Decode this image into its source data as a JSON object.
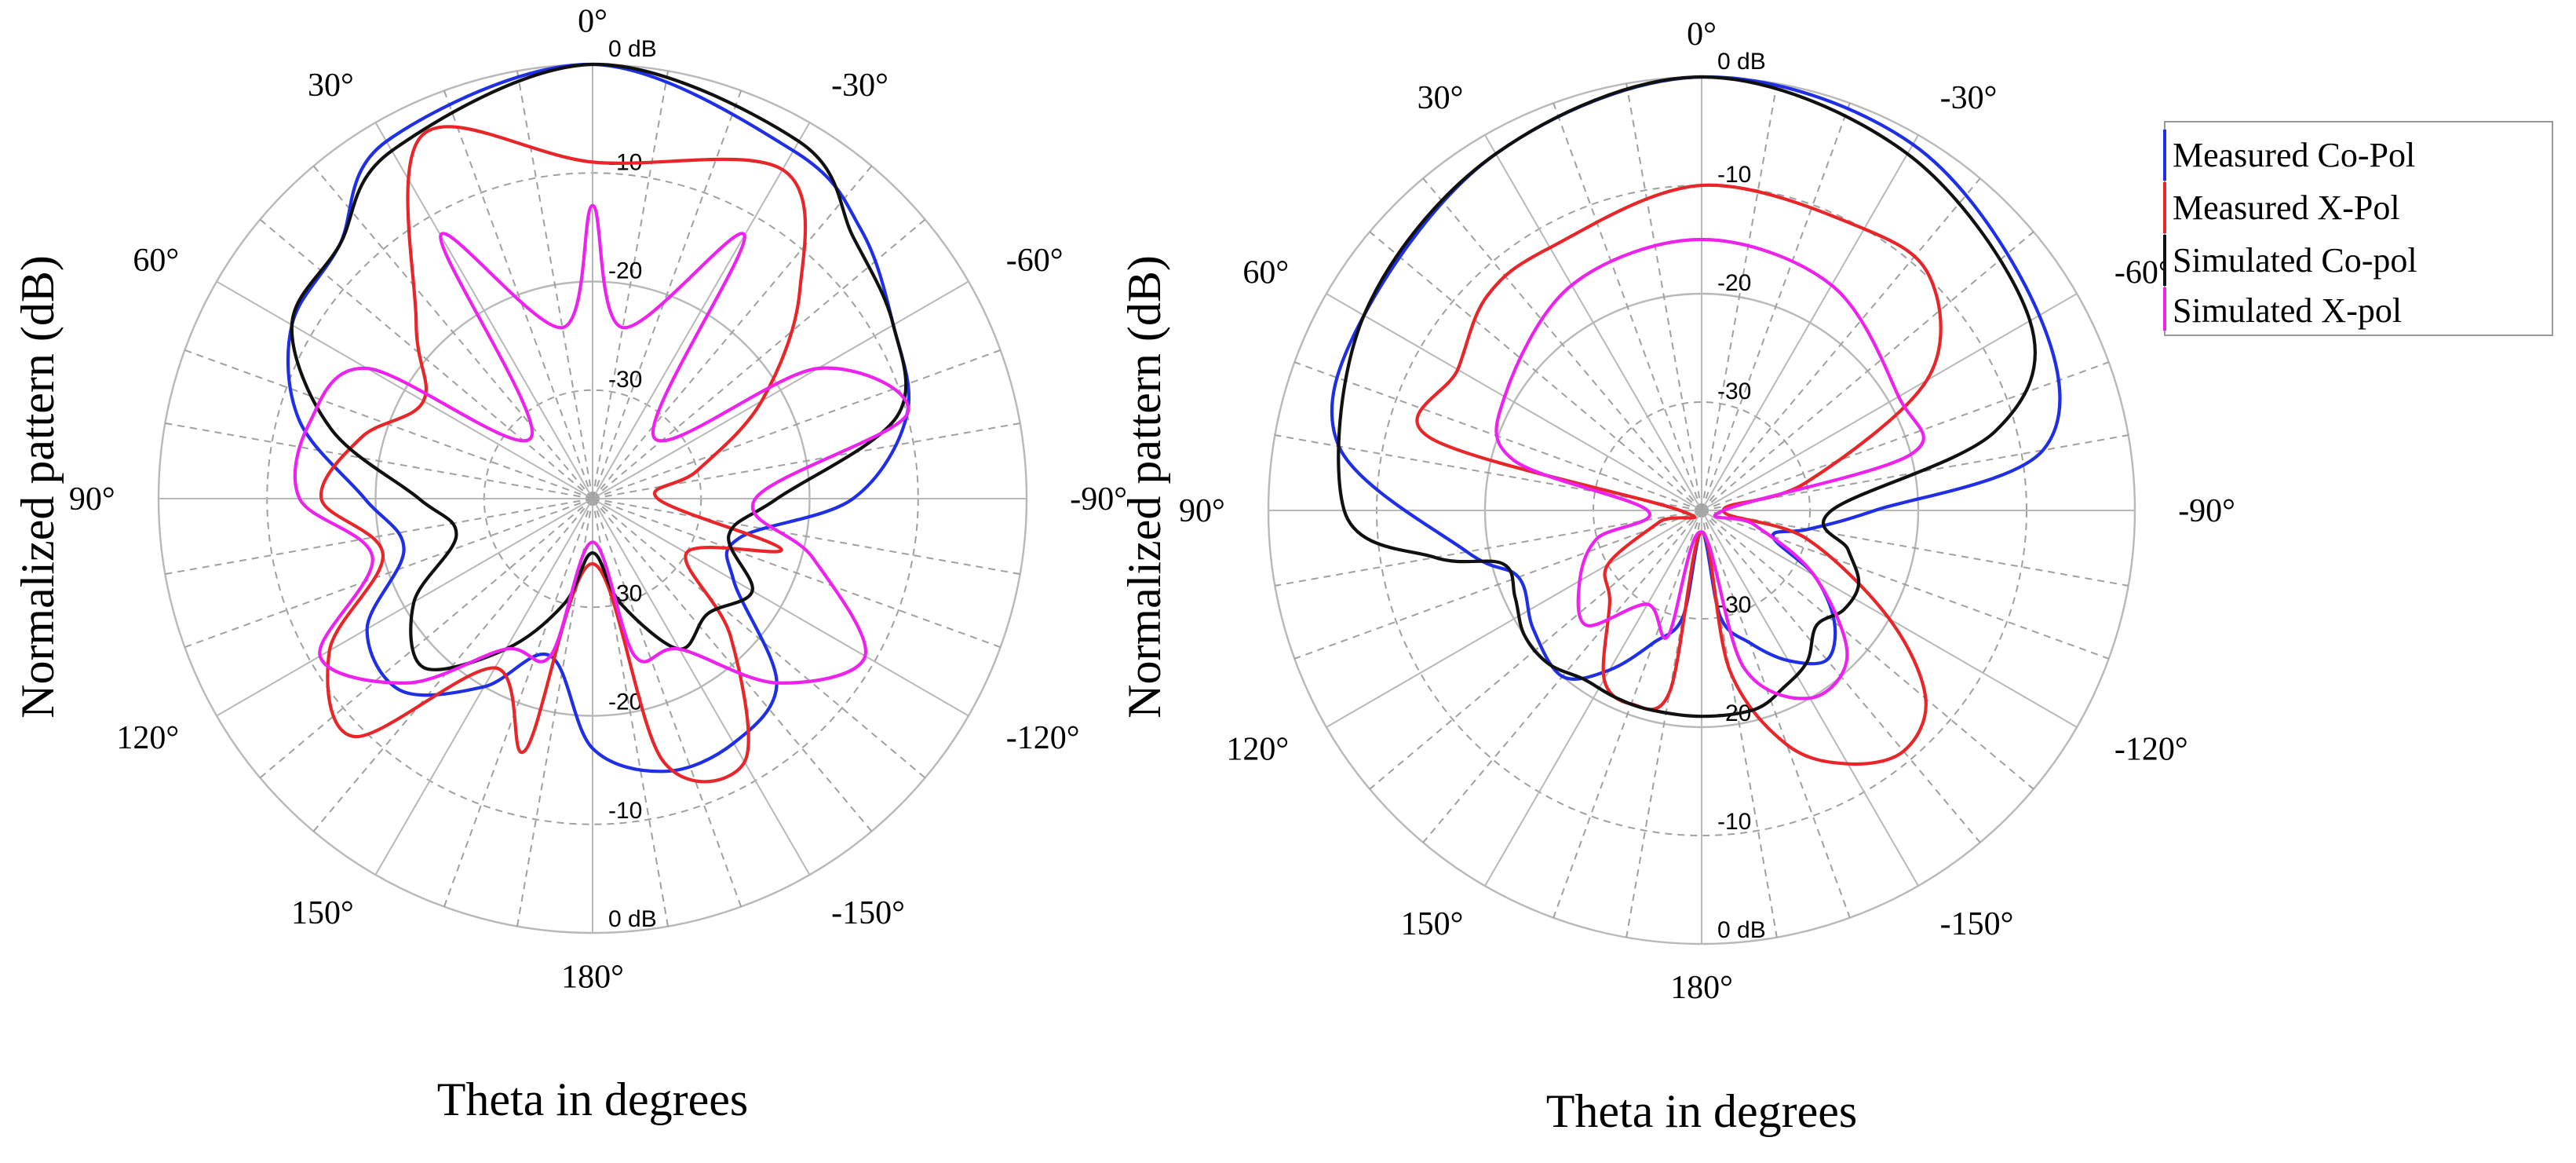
{
  "colors": {
    "measured_co": "#1f2fe6",
    "measured_x": "#e8262a",
    "simulated_co": "#111111",
    "simulated_x": "#ee22ee"
  },
  "legend": [
    {
      "label": "Measured Co-Pol",
      "color": "#1f2fe6"
    },
    {
      "label": "Measured X-Pol",
      "color": "#e8262a"
    },
    {
      "label": "Simulated Co-pol",
      "color": "#111111"
    },
    {
      "label": "Simulated X-pol",
      "color": "#ee22ee"
    }
  ],
  "chart_data": [
    {
      "type": "polar-line",
      "xlabel": "Theta in degrees",
      "ylabel": "Normalized pattern (dB)",
      "rlim": [
        -40,
        0
      ],
      "radial_ticks": [
        "0 dB",
        "-10",
        "-20",
        "-30"
      ],
      "lower_radial_ticks": [
        "-30",
        "-20",
        "-10",
        "0 dB"
      ],
      "angle_ticks": [
        "0°",
        "30°",
        "60°",
        "90°",
        "120°",
        "150°",
        "180°",
        "-30°",
        "-60°",
        "-90°",
        "-120°",
        "-150°"
      ],
      "series": [
        {
          "name": "Measured Co-Pol",
          "theta": [
            0,
            30,
            45,
            60,
            75,
            90,
            105,
            120,
            135,
            150,
            165,
            180,
            195,
            210,
            225,
            240,
            255,
            270,
            285,
            300,
            315,
            330
          ],
          "values": [
            0,
            -2,
            -7,
            -8,
            -12,
            -19,
            -22,
            -16,
            -15,
            -20,
            -25,
            -17,
            -14,
            -14,
            -16,
            -25,
            -26,
            -16,
            -10,
            -8,
            -5,
            -3
          ]
        },
        {
          "name": "Measured X-Pol",
          "theta": [
            0,
            25,
            45,
            60,
            75,
            90,
            105,
            120,
            135,
            150,
            165,
            180,
            195,
            210,
            225,
            240,
            255,
            270,
            285,
            300,
            315,
            330
          ],
          "values": [
            -9,
            -3,
            -17,
            -22,
            -18,
            -15,
            -20,
            -12,
            -9,
            -22,
            -16,
            -34,
            -15,
            -12,
            -22,
            -30,
            -22,
            -34,
            -30,
            -22,
            -13,
            -5
          ]
        },
        {
          "name": "Simulated Co-pol",
          "theta": [
            0,
            30,
            45,
            60,
            75,
            90,
            105,
            120,
            135,
            150,
            165,
            180,
            195,
            210,
            225,
            240,
            255,
            270,
            285,
            300,
            315,
            330
          ],
          "values": [
            0,
            -3,
            -7,
            -8,
            -15,
            -24,
            -27,
            -21,
            -18,
            -24,
            -30,
            -35,
            -30,
            -24,
            -25,
            -23,
            -27,
            -23,
            -11,
            -8,
            -6,
            -2
          ]
        },
        {
          "name": "Simulated X-pol",
          "theta": [
            0,
            10,
            30,
            45,
            60,
            75,
            90,
            105,
            120,
            135,
            150,
            165,
            180,
            195,
            210,
            225,
            240,
            255,
            270,
            285,
            300,
            315,
            330,
            350
          ],
          "values": [
            -13,
            -24,
            -12,
            -32,
            -16,
            -13,
            -13,
            -19,
            -11,
            -16,
            -24,
            -25,
            -36,
            -25,
            -24,
            -16,
            -11,
            -19,
            -25,
            -10,
            -16,
            -32,
            -12,
            -24
          ]
        }
      ]
    },
    {
      "type": "polar-line",
      "xlabel": "Theta in degrees",
      "ylabel": "Normalized pattern (dB)",
      "rlim": [
        -40,
        0
      ],
      "radial_ticks": [
        "0 dB",
        "-10",
        "-20",
        "-30"
      ],
      "lower_radial_ticks": [
        "-30",
        "-20",
        "-10",
        "0 dB"
      ],
      "angle_ticks": [
        "0°",
        "30°",
        "60°",
        "90°",
        "120°",
        "150°",
        "180°",
        "-30°",
        "-60°",
        "-90°",
        "-120°",
        "-150°"
      ],
      "series": [
        {
          "name": "Measured Co-Pol",
          "theta": [
            0,
            30,
            60,
            80,
            100,
            110,
            125,
            140,
            150,
            160,
            170,
            180,
            190,
            200,
            210,
            220,
            230,
            240,
            250,
            260,
            270,
            280,
            300,
            330
          ],
          "values": [
            0,
            -2,
            -4,
            -6,
            -18,
            -22,
            -21,
            -20,
            -23,
            -27,
            -30,
            -38,
            -30,
            -27,
            -24,
            -22,
            -24,
            -28,
            -33,
            -30,
            -24,
            -8,
            -4,
            -1
          ]
        },
        {
          "name": "Measured X-Pol",
          "theta": [
            0,
            30,
            45,
            60,
            75,
            90,
            105,
            120,
            135,
            150,
            160,
            170,
            180,
            190,
            200,
            210,
            220,
            230,
            240,
            255,
            270,
            285,
            300,
            315,
            330
          ],
          "values": [
            -10,
            -12,
            -12,
            -14,
            -14,
            -38,
            -36,
            -30,
            -28,
            -22,
            -21,
            -23,
            -38,
            -25,
            -17,
            -13,
            -11,
            -13,
            -20,
            -30,
            -38,
            -30,
            -16,
            -10,
            -10
          ]
        },
        {
          "name": "Simulated Co-pol",
          "theta": [
            0,
            30,
            60,
            90,
            100,
            105,
            115,
            125,
            135,
            145,
            155,
            165,
            180,
            195,
            205,
            215,
            225,
            235,
            245,
            255,
            270,
            285,
            300,
            330
          ],
          "values": [
            0,
            -2,
            -4,
            -7,
            -15,
            -21,
            -21,
            -20,
            -20,
            -21,
            -21,
            -21,
            -21,
            -21,
            -22,
            -23,
            -25,
            -24,
            -24,
            -26,
            -28,
            -12,
            -5,
            -2
          ]
        },
        {
          "name": "Simulated X-pol",
          "theta": [
            0,
            30,
            60,
            75,
            90,
            105,
            120,
            135,
            150,
            165,
            180,
            195,
            210,
            225,
            240,
            255,
            270,
            285,
            300,
            330
          ],
          "values": [
            -15,
            -16,
            -19,
            -22,
            -35,
            -30,
            -27,
            -25,
            -30,
            -28,
            -38,
            -25,
            -20,
            -21,
            -28,
            -35,
            -38,
            -20,
            -19,
            -16
          ]
        }
      ]
    }
  ]
}
